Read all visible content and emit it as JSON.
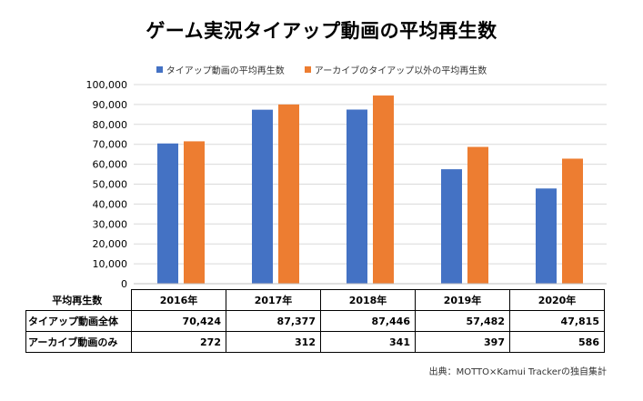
{
  "title": "ゲーム実況タイアップ動画の平均再生数",
  "source": "出典：MOTTO×Kamui Trackerの独自集計",
  "chart_data": {
    "type": "bar",
    "categories": [
      "2016年",
      "2017年",
      "2018年",
      "2019年",
      "2020年"
    ],
    "series": [
      {
        "name": "タイアップ動画の平均再生数",
        "color": "#4472C4",
        "values": [
          70424,
          87377,
          87446,
          57482,
          47815
        ]
      },
      {
        "name": "アーカイブのタイアップ以外の平均再生数",
        "color": "#ED7D31",
        "values": [
          71500,
          90000,
          94500,
          68700,
          62800
        ]
      }
    ],
    "ylim": [
      0,
      100000
    ],
    "yticks": [
      0,
      10000,
      20000,
      30000,
      40000,
      50000,
      60000,
      70000,
      80000,
      90000,
      100000
    ],
    "ytick_labels": [
      "0",
      "10,000",
      "20,000",
      "30,000",
      "40,000",
      "50,000",
      "60,000",
      "70,000",
      "80,000",
      "90,000",
      "100,000"
    ],
    "grid": true,
    "legend": "top-center"
  },
  "table": {
    "corner": "平均再生数",
    "headers": [
      "2016年",
      "2017年",
      "2018年",
      "2019年",
      "2020年"
    ],
    "rows": [
      {
        "label": "タイアップ動画全体",
        "values": [
          "70,424",
          "87,377",
          "87,446",
          "57,482",
          "47,815"
        ]
      },
      {
        "label": "アーカイブ動画のみ",
        "values": [
          "272",
          "312",
          "341",
          "397",
          "586"
        ]
      }
    ]
  }
}
